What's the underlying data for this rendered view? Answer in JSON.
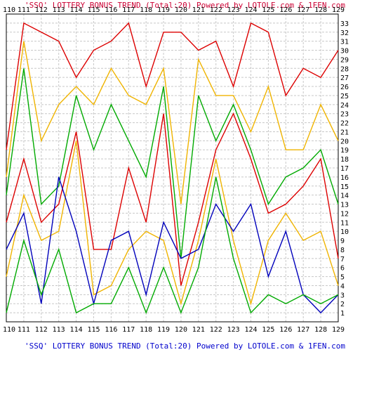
{
  "header_text": "'SSQ' LOTTERY BONUS TREND (Total:20)  Powered by LOTOLE.com & 1FEN.com",
  "footer_text": "'SSQ' LOTTERY BONUS TREND (Total:20)  Powered by LOTOLE.com & 1FEN.com",
  "colors": {
    "title": "#cc0033",
    "footer": "#0000cc",
    "grid": "#c8c8c8",
    "axis": "#000000",
    "background": "#ffffff"
  },
  "chart_data": {
    "type": "line",
    "grid": true,
    "title": "'SSQ' LOTTERY BONUS TREND (Total:20)  Powered by LOTOLE.com & 1FEN.com",
    "xlabel": "",
    "ylabel": "",
    "x": [
      "110",
      "111",
      "112",
      "113",
      "114",
      "115",
      "116",
      "117",
      "118",
      "119",
      "120",
      "121",
      "122",
      "123",
      "124",
      "125",
      "126",
      "127",
      "128",
      "129"
    ],
    "ylim": [
      0,
      34
    ],
    "y_ticks": [
      1,
      2,
      3,
      4,
      5,
      6,
      7,
      8,
      9,
      10,
      11,
      12,
      13,
      14,
      15,
      16,
      17,
      18,
      19,
      20,
      21,
      22,
      23,
      24,
      25,
      26,
      27,
      28,
      29,
      30,
      31,
      32,
      33
    ],
    "series": [
      {
        "color": "#dd0000",
        "values": [
          19,
          33,
          32,
          31,
          27,
          30,
          31,
          33,
          26,
          32,
          32,
          30,
          31,
          26,
          33,
          32,
          25,
          28,
          27,
          30
        ]
      },
      {
        "color": "#f0b400",
        "values": [
          16,
          31,
          20,
          24,
          26,
          24,
          28,
          25,
          24,
          28,
          13,
          29,
          25,
          25,
          21,
          26,
          19,
          19,
          24,
          20
        ]
      },
      {
        "color": "#00aa00",
        "values": [
          14,
          28,
          13,
          15,
          25,
          19,
          24,
          20,
          16,
          26,
          7,
          25,
          20,
          24,
          19,
          13,
          16,
          17,
          19,
          13
        ]
      },
      {
        "color": "#dd0000",
        "values": [
          11,
          18,
          11,
          13,
          21,
          8,
          8,
          17,
          11,
          23,
          4,
          11,
          19,
          23,
          18,
          12,
          13,
          15,
          18,
          7
        ]
      },
      {
        "color": "#f0b400",
        "values": [
          5,
          14,
          9,
          10,
          20,
          3,
          4,
          8,
          10,
          9,
          2,
          9,
          18,
          9,
          2,
          9,
          12,
          9,
          10,
          4
        ]
      },
      {
        "color": "#0000bb",
        "values": [
          8,
          12,
          2,
          16,
          10,
          2,
          9,
          10,
          3,
          11,
          7,
          8,
          13,
          10,
          13,
          5,
          10,
          3,
          1,
          3
        ]
      },
      {
        "color": "#00aa00",
        "values": [
          1,
          9,
          3,
          8,
          1,
          2,
          2,
          6,
          1,
          6,
          1,
          6,
          16,
          7,
          1,
          3,
          2,
          3,
          2,
          3
        ]
      }
    ]
  }
}
